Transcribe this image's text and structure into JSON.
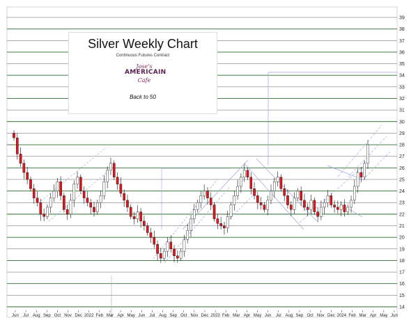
{
  "chart_data": {
    "type": "candlestick",
    "title": "Silver Weekly Chart",
    "subtitle": "Continuous Futures Contract",
    "note": "Back to 50",
    "logo": {
      "top": "Jose's",
      "middle": "AMERICAIN",
      "bottom": "Cafe"
    },
    "y_ticks": [
      "14",
      "15",
      "16",
      "17",
      "18",
      "19",
      "20",
      "21",
      "22",
      "23",
      "24",
      "25",
      "26",
      "27",
      "28",
      "29",
      "30",
      "31",
      "32",
      "33",
      "34",
      "35",
      "36",
      "37",
      "38",
      "39"
    ],
    "ylim": [
      14,
      39
    ],
    "x_ticks": [
      "Jun",
      "Jul",
      "Aug",
      "Sep",
      "Oct",
      "Nov",
      "Dec",
      "2022",
      "Feb",
      "Mar",
      "Apr",
      "May",
      "Jun",
      "Jul",
      "Aug",
      "Sep",
      "Oct",
      "Nov",
      "Dec",
      "2023",
      "Feb",
      "Mar",
      "Apr",
      "May",
      "Jun",
      "Jul",
      "Aug",
      "Sep",
      "Oct",
      "Nov",
      "Dec",
      "2024",
      "Feb",
      "Mar",
      "Apr",
      "May",
      "Jun"
    ],
    "grid": true,
    "up_color": "#ffffff",
    "down_color": "#e0161c",
    "major_grid_color": "#2e6b2e",
    "minor_grid_color": "#5c5c5c",
    "trend_color": "#9aa4dc",
    "close_path": [
      28.6,
      27.2,
      26.4,
      25.6,
      25.0,
      24.2,
      23.4,
      23.0,
      22.0,
      21.8,
      22.6,
      23.4,
      24.0,
      24.8,
      23.6,
      22.4,
      22.0,
      23.2,
      24.6,
      25.2,
      24.0,
      23.4,
      23.0,
      22.6,
      22.2,
      23.0,
      23.6,
      24.8,
      25.8,
      26.4,
      25.2,
      24.6,
      23.8,
      23.2,
      22.6,
      21.8,
      21.6,
      22.2,
      21.4,
      21.0,
      20.4,
      20.0,
      19.4,
      18.6,
      18.2,
      18.8,
      19.6,
      19.0,
      18.4,
      18.2,
      18.8,
      19.8,
      20.6,
      21.6,
      22.4,
      23.0,
      23.6,
      24.0,
      23.4,
      22.8,
      21.6,
      21.2,
      21.0,
      20.8,
      21.8,
      22.8,
      23.6,
      24.4,
      25.2,
      25.8,
      25.2,
      24.2,
      23.6,
      23.0,
      22.8,
      22.4,
      23.2,
      24.0,
      24.8,
      25.2,
      24.2,
      23.6,
      22.8,
      22.4,
      23.4,
      24.0,
      23.2,
      22.6,
      22.4,
      23.2,
      22.2,
      21.8,
      22.6,
      23.0,
      23.6,
      22.8,
      22.6,
      22.4,
      22.8,
      22.2,
      22.6,
      23.2,
      24.4,
      25.6,
      25.2,
      26.4,
      28.0
    ]
  }
}
